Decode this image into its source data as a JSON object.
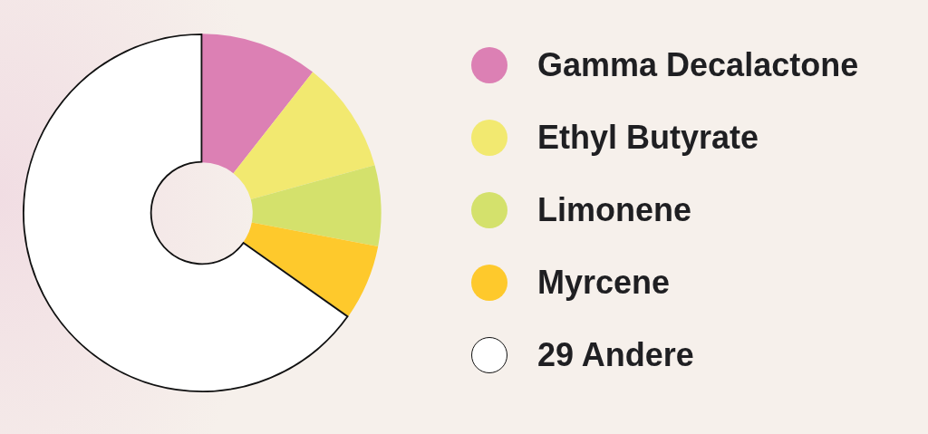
{
  "chart_data": {
    "type": "donut",
    "categories": [
      "Gamma Decalactone",
      "Ethyl Butyrate",
      "Limonene",
      "Myrcene",
      "29 Andere"
    ],
    "values": [
      10.6,
      10.1,
      7.3,
      6.8,
      65.2
    ],
    "colors": [
      "#dc80b4",
      "#f2e970",
      "#d4e16c",
      "#fec92c",
      "#ffffff"
    ],
    "legend": "right"
  }
}
